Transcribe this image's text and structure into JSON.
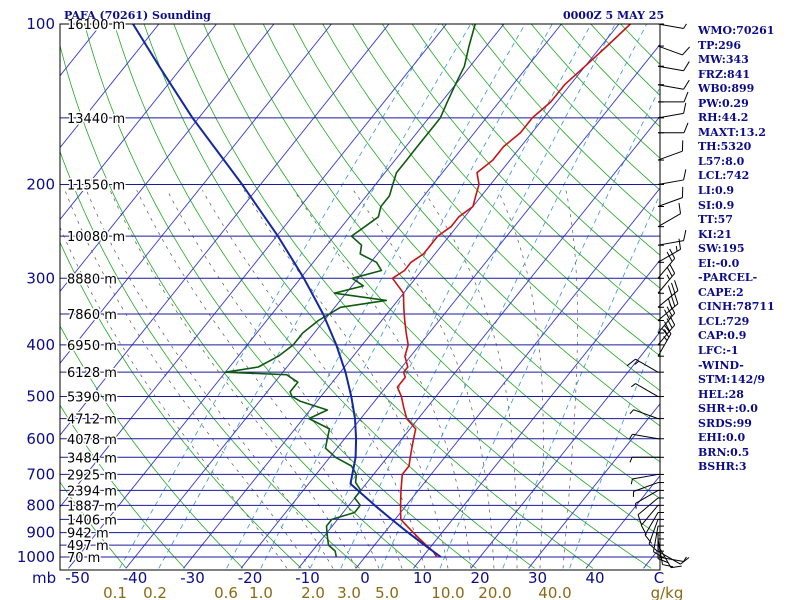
{
  "header": {
    "title": "PAFA (70261) Sounding",
    "time": "0000Z  5 MAY 25"
  },
  "indices": [
    "WMO:70261",
    "TP:296",
    "MW:343",
    "FRZ:841",
    "WB0:899",
    "PW:0.29",
    "RH:44.2",
    "MAXT:13.2",
    "TH:5320",
    "L57:8.0",
    "LCL:742",
    "LI:0.9",
    "SI:0.9",
    "TT:57",
    "KI:21",
    "SW:195",
    "EI:-0.0",
    "-PARCEL-",
    "CAPE:2",
    "CINH:78711",
    "LCL:729",
    "CAP:0.9",
    "LFC:-1",
    "-WIND-",
    "STM:142/9",
    "HEL:28",
    "SHR+:0.0",
    "SRDS:99",
    "EHI:0.0",
    "BRN:0.5",
    "BSHR:3"
  ],
  "colors": {
    "text": "#0b0b8c",
    "isobar": "#1a1a9c",
    "isotherm": "#3a3ad0",
    "dry_adiabat": "#22aa22",
    "mixing_ratio": "#3399cc",
    "moist_adiabat": "#555555",
    "temperature": "#c81414",
    "dewpoint": "#0f5a0f",
    "parcel": "#1428a0"
  },
  "chart_data": {
    "type": "line",
    "title": "PAFA (70261) Sounding",
    "subtitle": "0000Z  5 MAY 25",
    "xlabel": "",
    "ylabel": "mb",
    "y_scale": "log",
    "ylim": [
      1000,
      100
    ],
    "pressure_ticks": [
      "100",
      "200",
      "300",
      "400",
      "500",
      "600",
      "700",
      "800",
      "900",
      "1000"
    ],
    "y_unit_label": "mb",
    "temperature_ticks": [
      "-50",
      "-40",
      "-30",
      "-20",
      "-10",
      "0",
      "10",
      "20",
      "30",
      "40",
      "C"
    ],
    "mixing_ratio_ticks": [
      "0.1",
      "0.2",
      "0.6",
      "1.0",
      "2.0",
      "3.0",
      "5.0",
      "10.0",
      "20.0",
      "40.0",
      "g/kg"
    ],
    "height_labels": [
      {
        "p": 100,
        "label": "16100 m"
      },
      {
        "p": 150,
        "label": "13440 m"
      },
      {
        "p": 200,
        "label": "11550 m"
      },
      {
        "p": 250,
        "label": "10080 m"
      },
      {
        "p": 300,
        "label": "8880 m"
      },
      {
        "p": 350,
        "label": "7860 m"
      },
      {
        "p": 400,
        "label": "6950 m"
      },
      {
        "p": 450,
        "label": "6128 m"
      },
      {
        "p": 500,
        "label": "5390 m"
      },
      {
        "p": 550,
        "label": "4712 m"
      },
      {
        "p": 600,
        "label": "4078 m"
      },
      {
        "p": 650,
        "label": "3484 m"
      },
      {
        "p": 700,
        "label": "2925 m"
      },
      {
        "p": 750,
        "label": "2394 m"
      },
      {
        "p": 800,
        "label": "1887 m"
      },
      {
        "p": 850,
        "label": "1406 m"
      },
      {
        "p": 900,
        "label": "942 m"
      },
      {
        "p": 950,
        "label": "497 m"
      },
      {
        "p": 1000,
        "label": "70 m"
      }
    ],
    "series": [
      {
        "key": "temperature",
        "p": [
          1000,
          975,
          950,
          925,
          900,
          875,
          850,
          825,
          800,
          775,
          750,
          725,
          700,
          675,
          650,
          625,
          600,
          575,
          550,
          525,
          500,
          480,
          460,
          450,
          440,
          420,
          400,
          380,
          360,
          340,
          320,
          300,
          290,
          280,
          270,
          260,
          250,
          240,
          230,
          220,
          210,
          200,
          190,
          180,
          170,
          160,
          150,
          140,
          130,
          120,
          110,
          100
        ],
        "t": [
          12.5,
          11,
          9,
          7,
          5,
          3,
          1,
          0,
          -1,
          -2,
          -3,
          -4,
          -5,
          -5,
          -6,
          -7,
          -8,
          -9,
          -12,
          -14,
          -16,
          -18,
          -18,
          -19,
          -19,
          -21,
          -22,
          -24,
          -26,
          -28,
          -30,
          -34,
          -33,
          -33,
          -32,
          -32,
          -32,
          -31,
          -31,
          -30,
          -31,
          -32,
          -34,
          -33,
          -33,
          -32,
          -32,
          -31,
          -31,
          -30,
          -29,
          -28
        ]
      },
      {
        "key": "dewpoint",
        "p": [
          1000,
          975,
          950,
          925,
          900,
          875,
          850,
          825,
          800,
          775,
          750,
          725,
          700,
          675,
          650,
          625,
          600,
          575,
          550,
          530,
          510,
          500,
          490,
          470,
          455,
          450,
          440,
          420,
          400,
          380,
          360,
          340,
          330,
          320,
          310,
          300,
          290,
          280,
          270,
          260,
          250,
          240,
          230,
          220,
          210,
          200,
          190,
          180,
          170,
          160,
          150,
          140,
          130,
          120,
          110,
          100
        ],
        "t": [
          -5,
          -6,
          -8,
          -9,
          -10,
          -11,
          -11,
          -8,
          -8,
          -10,
          -10,
          -12,
          -13,
          -15,
          -19,
          -22,
          -23,
          -24,
          -29,
          -27,
          -33,
          -35,
          -36,
          -36,
          -39,
          -50,
          -45,
          -43,
          -42,
          -42,
          -41,
          -39,
          -32,
          -42,
          -38,
          -41,
          -37,
          -39,
          -43,
          -44,
          -47,
          -46,
          -45,
          -46,
          -46,
          -47,
          -48,
          -48,
          -48,
          -48,
          -48,
          -49,
          -50,
          -51,
          -53,
          -55
        ]
      },
      {
        "key": "parcel",
        "p": [
          1000,
          950,
          900,
          850,
          800,
          750,
          729,
          700,
          650,
          600,
          550,
          500,
          450,
          400,
          350,
          300,
          250,
          200,
          150,
          120,
          100
        ],
        "t": [
          13.2,
          8.7,
          4.1,
          -0.6,
          -5.5,
          -10.5,
          -12.7,
          -13.7,
          -15.5,
          -18.0,
          -21.0,
          -24.7,
          -29.1,
          -34.5,
          -41.1,
          -49.4,
          -59.8,
          -73.2,
          -91.1,
          -104.1,
          -114.5
        ]
      }
    ],
    "winds": [
      {
        "p": 1000,
        "dir": 100,
        "spd": 5
      },
      {
        "p": 975,
        "dir": 120,
        "spd": 10
      },
      {
        "p": 950,
        "dir": 150,
        "spd": 10
      },
      {
        "p": 925,
        "dir": 170,
        "spd": 10
      },
      {
        "p": 900,
        "dir": 180,
        "spd": 10
      },
      {
        "p": 875,
        "dir": 190,
        "spd": 10
      },
      {
        "p": 850,
        "dir": 200,
        "spd": 10
      },
      {
        "p": 825,
        "dir": 210,
        "spd": 10
      },
      {
        "p": 800,
        "dir": 220,
        "spd": 10
      },
      {
        "p": 775,
        "dir": 230,
        "spd": 10
      },
      {
        "p": 750,
        "dir": 240,
        "spd": 5
      },
      {
        "p": 725,
        "dir": 250,
        "spd": 5
      },
      {
        "p": 700,
        "dir": 260,
        "spd": 5
      },
      {
        "p": 650,
        "dir": 270,
        "spd": 5
      },
      {
        "p": 600,
        "dir": 280,
        "spd": 5
      },
      {
        "p": 550,
        "dir": 290,
        "spd": 5
      },
      {
        "p": 500,
        "dir": 300,
        "spd": 5
      },
      {
        "p": 450,
        "dir": 300,
        "spd": 15
      },
      {
        "p": 420,
        "dir": 30,
        "spd": 25
      },
      {
        "p": 400,
        "dir": 40,
        "spd": 35
      },
      {
        "p": 380,
        "dir": 40,
        "spd": 30
      },
      {
        "p": 360,
        "dir": 50,
        "spd": 30
      },
      {
        "p": 340,
        "dir": 50,
        "spd": 30
      },
      {
        "p": 320,
        "dir": 40,
        "spd": 25
      },
      {
        "p": 300,
        "dir": 40,
        "spd": 20
      },
      {
        "p": 280,
        "dir": 60,
        "spd": 15
      },
      {
        "p": 260,
        "dir": 80,
        "spd": 10
      },
      {
        "p": 240,
        "dir": 60,
        "spd": 10
      },
      {
        "p": 220,
        "dir": 70,
        "spd": 10
      },
      {
        "p": 200,
        "dir": 80,
        "spd": 10
      },
      {
        "p": 180,
        "dir": 70,
        "spd": 10
      },
      {
        "p": 160,
        "dir": 90,
        "spd": 10
      },
      {
        "p": 150,
        "dir": 80,
        "spd": 10
      },
      {
        "p": 140,
        "dir": 90,
        "spd": 10
      },
      {
        "p": 130,
        "dir": 100,
        "spd": 10
      },
      {
        "p": 120,
        "dir": 100,
        "spd": 10
      },
      {
        "p": 110,
        "dir": 110,
        "spd": 10
      },
      {
        "p": 100,
        "dir": 100,
        "spd": 5
      }
    ],
    "grid": true,
    "legend": "none"
  }
}
